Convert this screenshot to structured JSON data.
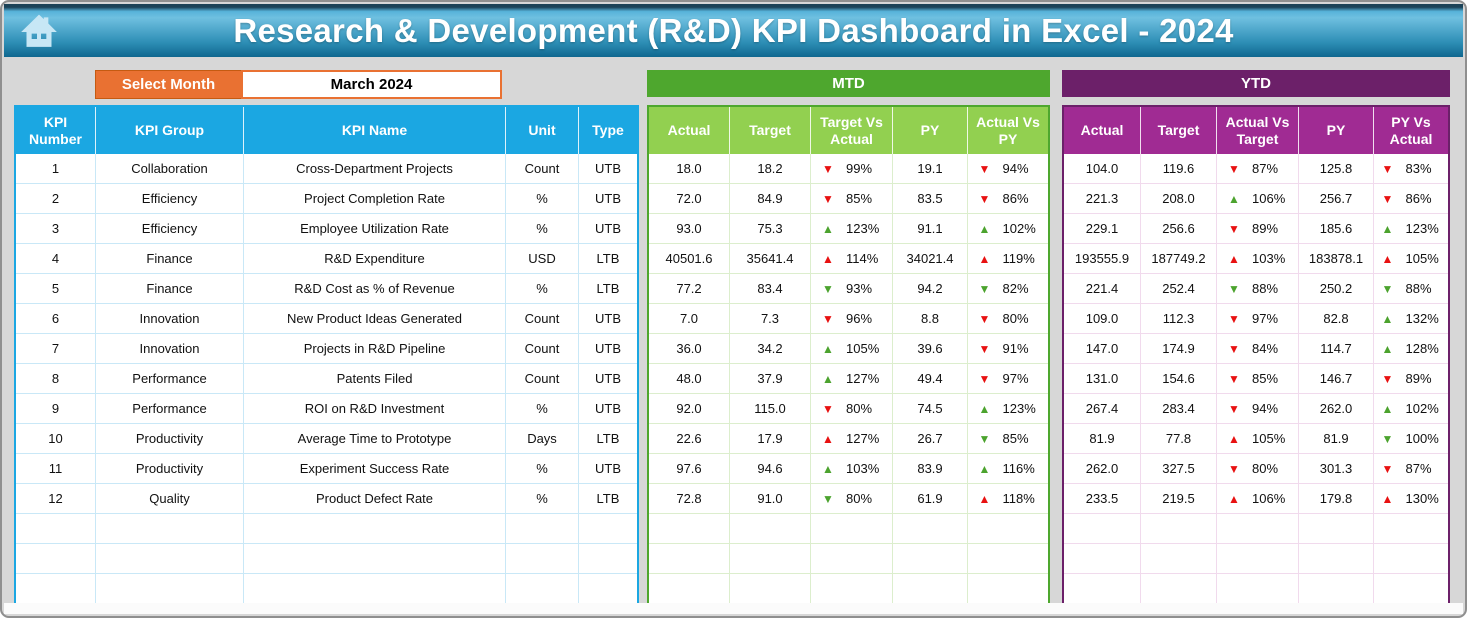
{
  "header": {
    "title": "Research & Development (R&D) KPI Dashboard in Excel - 2024"
  },
  "controls": {
    "select_month_label": "Select Month",
    "selected_month": "March 2024"
  },
  "colors": {
    "titlebar_top": "#57B3DA",
    "titlebar_bottom": "#0F678F",
    "kpi_header_blue": "#1BA7E2",
    "mtd_banner_green": "#4EA72E",
    "mtd_header_green": "#92D050",
    "ytd_banner_purple": "#6C2069",
    "ytd_header_magenta": "#A02B93",
    "select_month_orange": "#E97132",
    "indicator_red": "#E81111",
    "indicator_green": "#4CA32E",
    "background_gray": "#D7D7D7"
  },
  "empty_rows": 3,
  "kpi_table": {
    "headers": [
      "KPI Number",
      "KPI Group",
      "KPI Name",
      "Unit",
      "Type"
    ],
    "rows": [
      {
        "number": "1",
        "group": "Collaboration",
        "name": "Cross-Department Projects",
        "unit": "Count",
        "type": "UTB"
      },
      {
        "number": "2",
        "group": "Efficiency",
        "name": "Project Completion Rate",
        "unit": "%",
        "type": "UTB"
      },
      {
        "number": "3",
        "group": "Efficiency",
        "name": "Employee Utilization Rate",
        "unit": "%",
        "type": "UTB"
      },
      {
        "number": "4",
        "group": "Finance",
        "name": "R&D Expenditure",
        "unit": "USD",
        "type": "LTB"
      },
      {
        "number": "5",
        "group": "Finance",
        "name": "R&D Cost as % of Revenue",
        "unit": "%",
        "type": "LTB"
      },
      {
        "number": "6",
        "group": "Innovation",
        "name": "New Product Ideas Generated",
        "unit": "Count",
        "type": "UTB"
      },
      {
        "number": "7",
        "group": "Innovation",
        "name": "Projects in R&D Pipeline",
        "unit": "Count",
        "type": "UTB"
      },
      {
        "number": "8",
        "group": "Performance",
        "name": "Patents Filed",
        "unit": "Count",
        "type": "UTB"
      },
      {
        "number": "9",
        "group": "Performance",
        "name": "ROI on R&D Investment",
        "unit": "%",
        "type": "UTB"
      },
      {
        "number": "10",
        "group": "Productivity",
        "name": "Average Time to Prototype",
        "unit": "Days",
        "type": "LTB"
      },
      {
        "number": "11",
        "group": "Productivity",
        "name": "Experiment Success Rate",
        "unit": "%",
        "type": "UTB"
      },
      {
        "number": "12",
        "group": "Quality",
        "name": "Product Defect Rate",
        "unit": "%",
        "type": "LTB"
      }
    ]
  },
  "mtd": {
    "banner": "MTD",
    "headers": [
      "Actual",
      "Target",
      "Target Vs Actual",
      "PY",
      "Actual Vs PY"
    ],
    "col_keys": [
      "actual",
      "target",
      "target_vs_actual",
      "py",
      "actual_vs_py"
    ],
    "rows": [
      {
        "actual": "18.0",
        "target": "18.2",
        "target_vs_actual": {
          "dir": "down",
          "color": "red",
          "pct": "99%"
        },
        "py": "19.1",
        "actual_vs_py": {
          "dir": "down",
          "color": "red",
          "pct": "94%"
        }
      },
      {
        "actual": "72.0",
        "target": "84.9",
        "target_vs_actual": {
          "dir": "down",
          "color": "red",
          "pct": "85%"
        },
        "py": "83.5",
        "actual_vs_py": {
          "dir": "down",
          "color": "red",
          "pct": "86%"
        }
      },
      {
        "actual": "93.0",
        "target": "75.3",
        "target_vs_actual": {
          "dir": "up",
          "color": "green",
          "pct": "123%"
        },
        "py": "91.1",
        "actual_vs_py": {
          "dir": "up",
          "color": "green",
          "pct": "102%"
        }
      },
      {
        "actual": "40501.6",
        "target": "35641.4",
        "target_vs_actual": {
          "dir": "up",
          "color": "red",
          "pct": "114%"
        },
        "py": "34021.4",
        "actual_vs_py": {
          "dir": "up",
          "color": "red",
          "pct": "119%"
        }
      },
      {
        "actual": "77.2",
        "target": "83.4",
        "target_vs_actual": {
          "dir": "down",
          "color": "green",
          "pct": "93%"
        },
        "py": "94.2",
        "actual_vs_py": {
          "dir": "down",
          "color": "green",
          "pct": "82%"
        }
      },
      {
        "actual": "7.0",
        "target": "7.3",
        "target_vs_actual": {
          "dir": "down",
          "color": "red",
          "pct": "96%"
        },
        "py": "8.8",
        "actual_vs_py": {
          "dir": "down",
          "color": "red",
          "pct": "80%"
        }
      },
      {
        "actual": "36.0",
        "target": "34.2",
        "target_vs_actual": {
          "dir": "up",
          "color": "green",
          "pct": "105%"
        },
        "py": "39.6",
        "actual_vs_py": {
          "dir": "down",
          "color": "red",
          "pct": "91%"
        }
      },
      {
        "actual": "48.0",
        "target": "37.9",
        "target_vs_actual": {
          "dir": "up",
          "color": "green",
          "pct": "127%"
        },
        "py": "49.4",
        "actual_vs_py": {
          "dir": "down",
          "color": "red",
          "pct": "97%"
        }
      },
      {
        "actual": "92.0",
        "target": "115.0",
        "target_vs_actual": {
          "dir": "down",
          "color": "red",
          "pct": "80%"
        },
        "py": "74.5",
        "actual_vs_py": {
          "dir": "up",
          "color": "green",
          "pct": "123%"
        }
      },
      {
        "actual": "22.6",
        "target": "17.9",
        "target_vs_actual": {
          "dir": "up",
          "color": "red",
          "pct": "127%"
        },
        "py": "26.7",
        "actual_vs_py": {
          "dir": "down",
          "color": "green",
          "pct": "85%"
        }
      },
      {
        "actual": "97.6",
        "target": "94.6",
        "target_vs_actual": {
          "dir": "up",
          "color": "green",
          "pct": "103%"
        },
        "py": "83.9",
        "actual_vs_py": {
          "dir": "up",
          "color": "green",
          "pct": "116%"
        }
      },
      {
        "actual": "72.8",
        "target": "91.0",
        "target_vs_actual": {
          "dir": "down",
          "color": "green",
          "pct": "80%"
        },
        "py": "61.9",
        "actual_vs_py": {
          "dir": "up",
          "color": "red",
          "pct": "118%"
        }
      }
    ]
  },
  "ytd": {
    "banner": "YTD",
    "headers": [
      "Actual",
      "Target",
      "Actual Vs Target",
      "PY",
      "PY Vs Actual"
    ],
    "col_keys": [
      "actual",
      "target",
      "actual_vs_target",
      "py",
      "py_vs_actual"
    ],
    "rows": [
      {
        "actual": "104.0",
        "target": "119.6",
        "actual_vs_target": {
          "dir": "down",
          "color": "red",
          "pct": "87%"
        },
        "py": "125.8",
        "py_vs_actual": {
          "dir": "down",
          "color": "red",
          "pct": "83%"
        }
      },
      {
        "actual": "221.3",
        "target": "208.0",
        "actual_vs_target": {
          "dir": "up",
          "color": "green",
          "pct": "106%"
        },
        "py": "256.7",
        "py_vs_actual": {
          "dir": "down",
          "color": "red",
          "pct": "86%"
        }
      },
      {
        "actual": "229.1",
        "target": "256.6",
        "actual_vs_target": {
          "dir": "down",
          "color": "red",
          "pct": "89%"
        },
        "py": "185.6",
        "py_vs_actual": {
          "dir": "up",
          "color": "green",
          "pct": "123%"
        }
      },
      {
        "actual": "193555.9",
        "target": "187749.2",
        "actual_vs_target": {
          "dir": "up",
          "color": "red",
          "pct": "103%"
        },
        "py": "183878.1",
        "py_vs_actual": {
          "dir": "up",
          "color": "red",
          "pct": "105%"
        }
      },
      {
        "actual": "221.4",
        "target": "252.4",
        "actual_vs_target": {
          "dir": "down",
          "color": "green",
          "pct": "88%"
        },
        "py": "250.2",
        "py_vs_actual": {
          "dir": "down",
          "color": "green",
          "pct": "88%"
        }
      },
      {
        "actual": "109.0",
        "target": "112.3",
        "actual_vs_target": {
          "dir": "down",
          "color": "red",
          "pct": "97%"
        },
        "py": "82.8",
        "py_vs_actual": {
          "dir": "up",
          "color": "green",
          "pct": "132%"
        }
      },
      {
        "actual": "147.0",
        "target": "174.9",
        "actual_vs_target": {
          "dir": "down",
          "color": "red",
          "pct": "84%"
        },
        "py": "114.7",
        "py_vs_actual": {
          "dir": "up",
          "color": "green",
          "pct": "128%"
        }
      },
      {
        "actual": "131.0",
        "target": "154.6",
        "actual_vs_target": {
          "dir": "down",
          "color": "red",
          "pct": "85%"
        },
        "py": "146.7",
        "py_vs_actual": {
          "dir": "down",
          "color": "red",
          "pct": "89%"
        }
      },
      {
        "actual": "267.4",
        "target": "283.4",
        "actual_vs_target": {
          "dir": "down",
          "color": "red",
          "pct": "94%"
        },
        "py": "262.0",
        "py_vs_actual": {
          "dir": "up",
          "color": "green",
          "pct": "102%"
        }
      },
      {
        "actual": "81.9",
        "target": "77.8",
        "actual_vs_target": {
          "dir": "up",
          "color": "red",
          "pct": "105%"
        },
        "py": "81.9",
        "py_vs_actual": {
          "dir": "down",
          "color": "green",
          "pct": "100%"
        }
      },
      {
        "actual": "262.0",
        "target": "327.5",
        "actual_vs_target": {
          "dir": "down",
          "color": "red",
          "pct": "80%"
        },
        "py": "301.3",
        "py_vs_actual": {
          "dir": "down",
          "color": "red",
          "pct": "87%"
        }
      },
      {
        "actual": "233.5",
        "target": "219.5",
        "actual_vs_target": {
          "dir": "up",
          "color": "red",
          "pct": "106%"
        },
        "py": "179.8",
        "py_vs_actual": {
          "dir": "up",
          "color": "red",
          "pct": "130%"
        }
      }
    ]
  }
}
